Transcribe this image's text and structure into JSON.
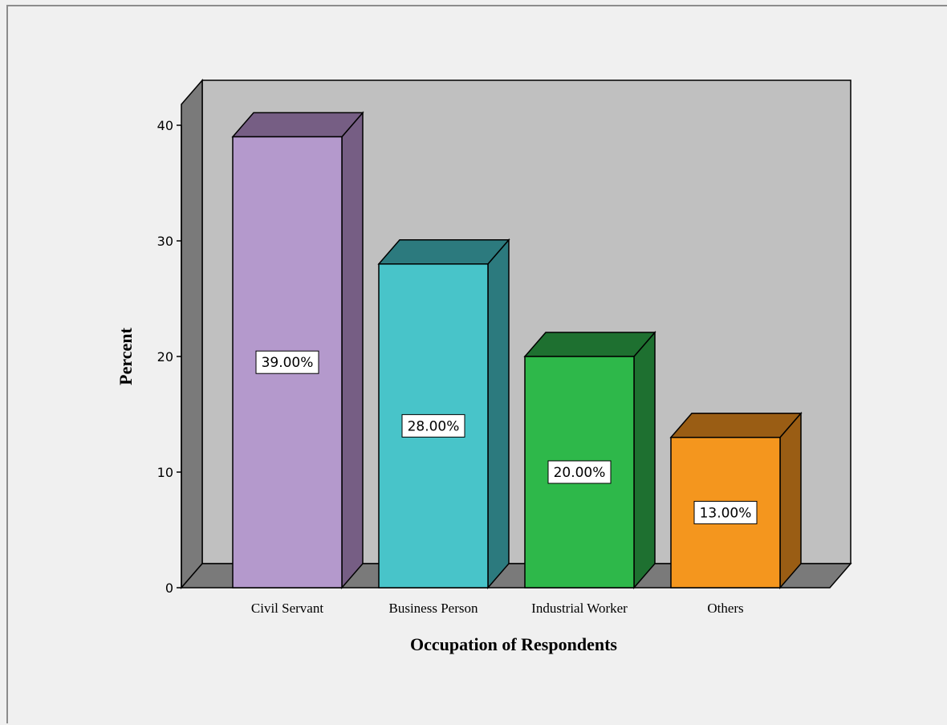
{
  "chart_data": {
    "type": "bar",
    "title": "",
    "xlabel": "Occupation of Respondents",
    "ylabel": "Percent",
    "categories": [
      "Civil Servant",
      "Business Person",
      "Industrial Worker",
      "Others"
    ],
    "values": [
      39,
      28,
      20,
      13
    ],
    "data_labels": [
      "39.00%",
      "28.00%",
      "20.00%",
      "13.00%"
    ],
    "ylim": [
      0,
      40
    ],
    "yticks": [
      0,
      10,
      20,
      30,
      40
    ],
    "ytick_labels": [
      "0",
      "10",
      "20",
      "30",
      "40"
    ],
    "grid": false,
    "legend": "none",
    "style": "3d",
    "colors": {
      "bars": [
        "#b499cc",
        "#48c4c9",
        "#2eb84a",
        "#f4961e"
      ],
      "bar_tops": [
        "#765e84",
        "#2c7a7e",
        "#1e7030",
        "#9a5d14"
      ],
      "bar_sides": [
        "#765e84",
        "#2c7a7e",
        "#1e7030",
        "#9a5d14"
      ],
      "back_wall": "#c0c0c0",
      "side_wall": "#7a7a7a",
      "floor": "#7a7a7a",
      "background": "#f0f0f0"
    }
  }
}
